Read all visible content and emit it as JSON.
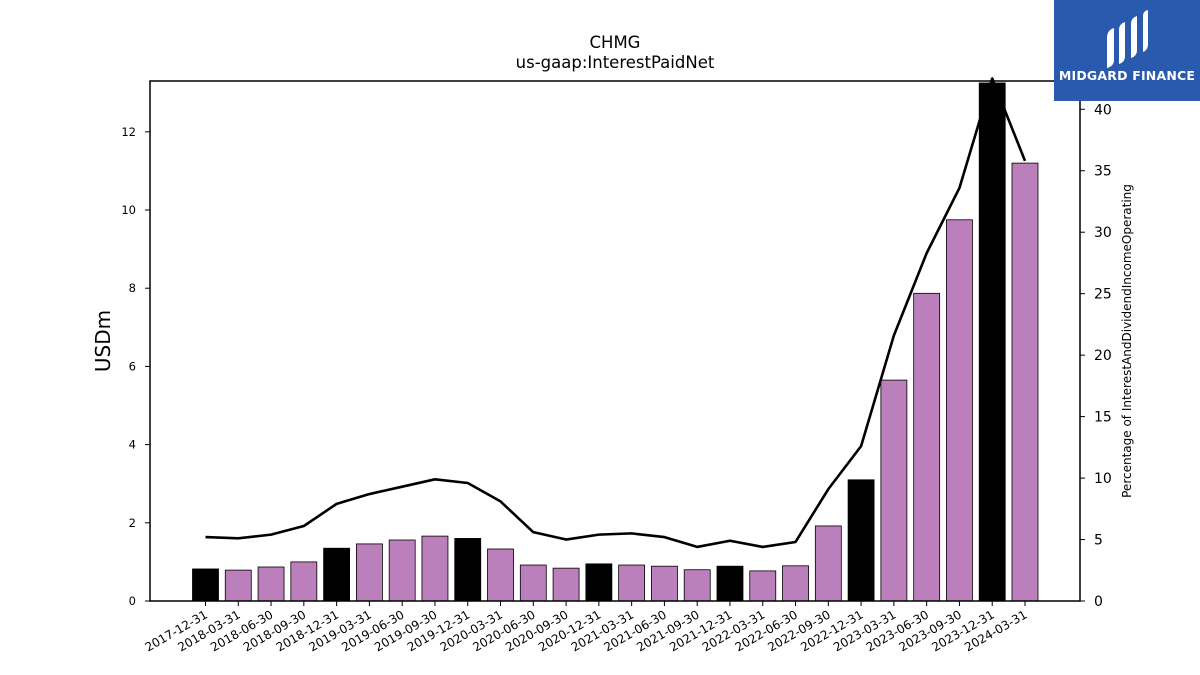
{
  "brand": {
    "name": "MIDGARD FINANCE",
    "icon": "midgard-logo-icon",
    "background": "#2a5aad"
  },
  "chart_data": {
    "type": "bar",
    "title": "CHMG",
    "subtitle": "us-gaap:InterestPaidNet",
    "ylabel": "USDm",
    "y2label": "Percentage of InterestAndDividendIncomeOperating",
    "ylim": [
      0,
      13.3
    ],
    "y2lim": [
      0,
      42.3
    ],
    "yticks": [
      0,
      2,
      4,
      6,
      8,
      10,
      12
    ],
    "y2ticks": [
      0,
      5,
      10,
      15,
      20,
      25,
      30,
      35,
      40
    ],
    "categories": [
      "2017-12-31",
      "2018-03-31",
      "2018-06-30",
      "2018-09-30",
      "2018-12-31",
      "2019-03-31",
      "2019-06-30",
      "2019-09-30",
      "2019-12-31",
      "2020-03-31",
      "2020-06-30",
      "2020-09-30",
      "2020-12-31",
      "2021-03-31",
      "2021-06-30",
      "2021-09-30",
      "2021-12-31",
      "2022-03-31",
      "2022-06-30",
      "2022-09-30",
      "2022-12-31",
      "2023-03-31",
      "2023-06-30",
      "2023-09-30",
      "2023-12-31",
      "2024-03-31"
    ],
    "series": [
      {
        "type": "bar",
        "values": [
          0.82,
          0.79,
          0.87,
          1.0,
          1.35,
          1.46,
          1.56,
          1.66,
          1.6,
          1.33,
          0.92,
          0.84,
          0.95,
          0.92,
          0.89,
          0.8,
          0.89,
          0.77,
          0.9,
          1.92,
          3.1,
          5.65,
          7.87,
          9.75,
          13.25,
          11.2
        ],
        "colors": [
          "#000000",
          "#bb7fbc",
          "#bb7fbc",
          "#bb7fbc",
          "#000000",
          "#bb7fbc",
          "#bb7fbc",
          "#bb7fbc",
          "#000000",
          "#bb7fbc",
          "#bb7fbc",
          "#bb7fbc",
          "#000000",
          "#bb7fbc",
          "#bb7fbc",
          "#bb7fbc",
          "#000000",
          "#bb7fbc",
          "#bb7fbc",
          "#bb7fbc",
          "#000000",
          "#bb7fbc",
          "#bb7fbc",
          "#bb7fbc",
          "#000000",
          "#bb7fbc"
        ]
      },
      {
        "type": "line",
        "axis": "right",
        "color": "#000000",
        "values": [
          5.2,
          5.1,
          5.4,
          6.1,
          7.9,
          8.7,
          9.3,
          9.9,
          9.6,
          8.1,
          5.6,
          5.0,
          5.4,
          5.5,
          5.2,
          4.4,
          4.9,
          4.4,
          4.8,
          9.1,
          12.6,
          21.6,
          28.3,
          33.6,
          42.5,
          35.8
        ]
      }
    ],
    "colors": {
      "quarter": "#bb7fbc",
      "year_end": "#000000"
    },
    "grid": false,
    "legend": "none"
  }
}
